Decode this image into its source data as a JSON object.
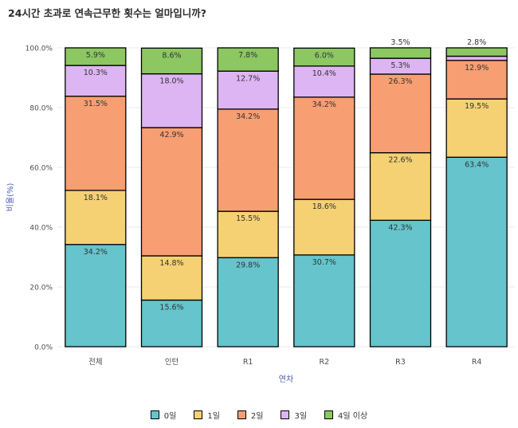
{
  "chart_data": {
    "type": "bar",
    "stacked": true,
    "percent": true,
    "title": "24시간 초과로 연속근무한 횟수는 얼마입니까?",
    "xlabel": "연차",
    "ylabel": "비율(%)",
    "ylim": [
      0,
      100
    ],
    "yticks": [
      "0.0%",
      "20.0%",
      "40.0%",
      "60.0%",
      "80.0%",
      "100.0%"
    ],
    "categories": [
      "전체",
      "인턴",
      "R1",
      "R2",
      "R3",
      "R4"
    ],
    "series": [
      {
        "name": "0일",
        "color": "#65c4cc",
        "values": [
          34.2,
          15.6,
          29.8,
          30.7,
          42.3,
          63.4
        ]
      },
      {
        "name": "1일",
        "color": "#f5d174",
        "values": [
          18.1,
          14.8,
          15.5,
          18.6,
          22.6,
          19.5
        ]
      },
      {
        "name": "2일",
        "color": "#f79e72",
        "values": [
          31.5,
          42.9,
          34.2,
          34.2,
          26.3,
          12.9
        ]
      },
      {
        "name": "3일",
        "color": "#ddb5f2",
        "values": [
          10.3,
          18.0,
          12.7,
          10.4,
          5.3,
          1.4
        ]
      },
      {
        "name": "4일 이상",
        "color": "#8cc762",
        "values": [
          5.9,
          8.6,
          7.8,
          6.0,
          3.5,
          2.8
        ]
      }
    ],
    "data_labels": [
      [
        "34.2%",
        "15.6%",
        "29.8%",
        "30.7%",
        "42.3%",
        "63.4%"
      ],
      [
        "18.1%",
        "14.8%",
        "15.5%",
        "18.6%",
        "22.6%",
        "19.5%"
      ],
      [
        "31.5%",
        "42.9%",
        "34.2%",
        "34.2%",
        "26.3%",
        "12.9%"
      ],
      [
        "10.3%",
        "18.0%",
        "12.7%",
        "10.4%",
        "5.3%",
        ""
      ],
      [
        "5.9%",
        "8.6%",
        "7.8%",
        "6.0%",
        "3.5%",
        "2.8%"
      ]
    ],
    "grid": true,
    "legend_position": "bottom"
  }
}
